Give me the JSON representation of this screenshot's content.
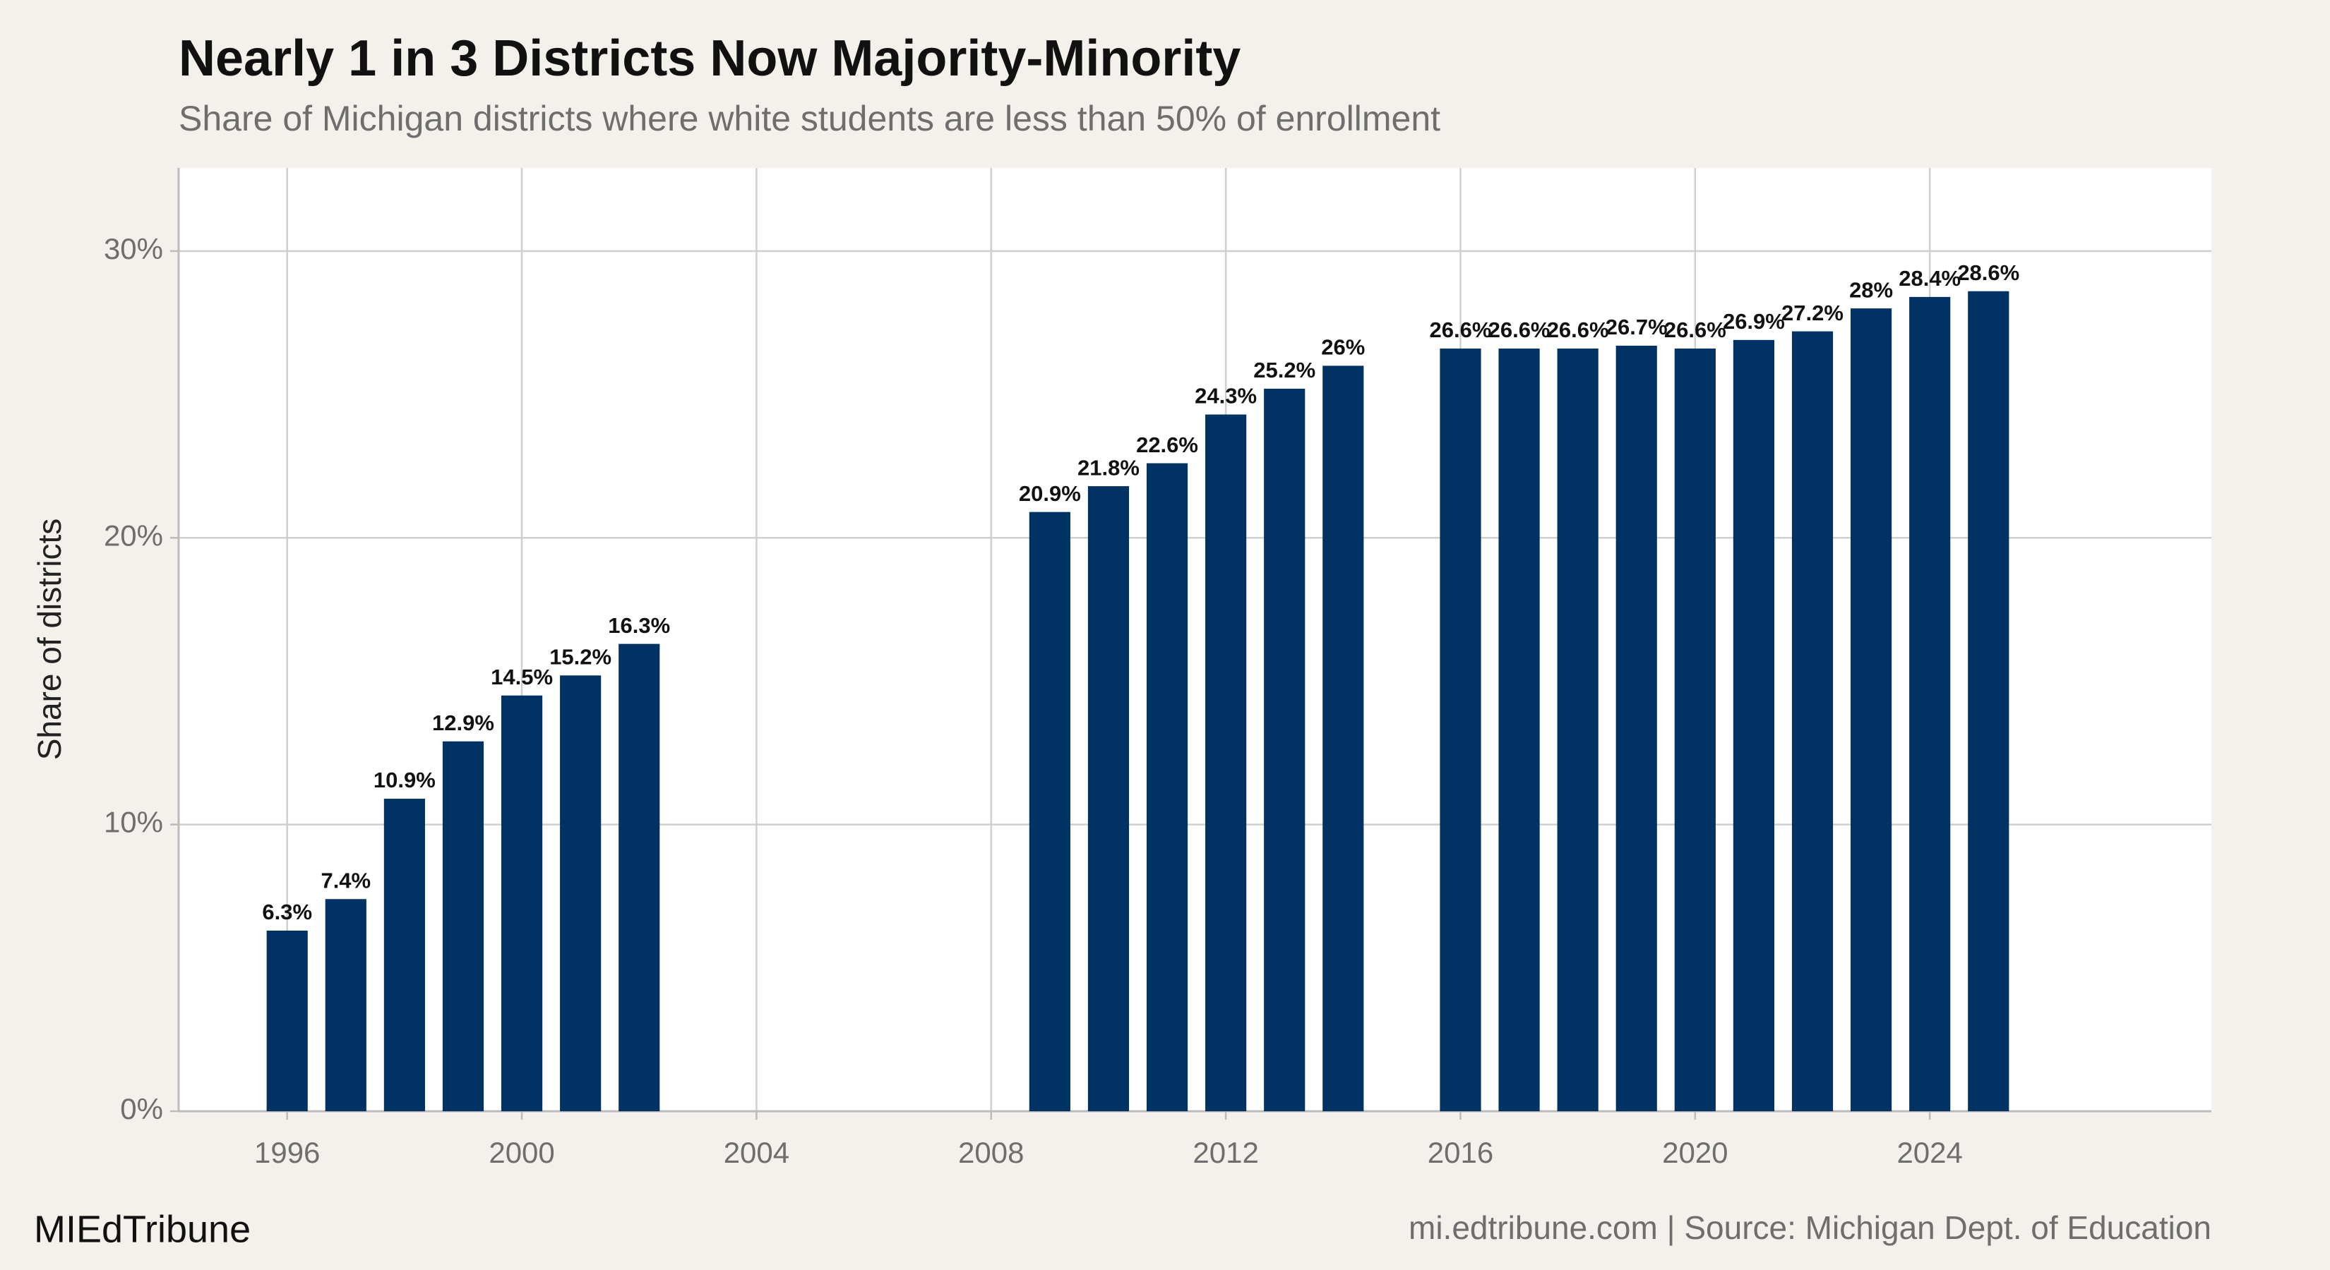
{
  "chart_data": {
    "type": "bar",
    "title": "Nearly 1 in 3 Districts Now Majority-Minority",
    "subtitle": "Share of Michigan districts where white students are less than 50% of enrollment",
    "y_label": "Share of districts",
    "brand": "MIEdTribune",
    "source": "mi.edtribune.com | Source: Michigan Dept. of Education",
    "x": [
      1996,
      1997,
      1998,
      1999,
      2000,
      2001,
      2002,
      2009,
      2010,
      2011,
      2012,
      2013,
      2014,
      2016,
      2017,
      2018,
      2019,
      2020,
      2021,
      2022,
      2023,
      2024,
      2025
    ],
    "values": [
      6.3,
      7.4,
      10.9,
      12.9,
      14.5,
      15.2,
      16.3,
      20.9,
      21.8,
      22.6,
      24.3,
      25.2,
      26,
      26.6,
      26.6,
      26.6,
      26.7,
      26.6,
      26.9,
      27.2,
      28,
      28.4,
      28.6
    ],
    "value_labels": [
      "6.3%",
      "7.4%",
      "10.9%",
      "12.9%",
      "14.5%",
      "15.2%",
      "16.3%",
      "20.9%",
      "21.8%",
      "22.6%",
      "24.3%",
      "25.2%",
      "26%",
      "26.6%",
      "26.6%",
      "26.6%",
      "26.7%",
      "26.6%",
      "26.9%",
      "27.2%",
      "28%",
      "28.4%",
      "28.6%"
    ],
    "color": "#003264",
    "xlim": [
      1994.15,
      2028.8
    ],
    "xticks": [
      1996,
      2000,
      2004,
      2008,
      2012,
      2016,
      2020,
      2024
    ],
    "ylim": [
      0,
      32.9
    ],
    "yticks": [
      {
        "value": 0,
        "label": "0%"
      },
      {
        "value": 10,
        "label": "10%"
      },
      {
        "value": 20,
        "label": "20%"
      },
      {
        "value": 30,
        "label": "30%"
      }
    ],
    "grid": true
  }
}
